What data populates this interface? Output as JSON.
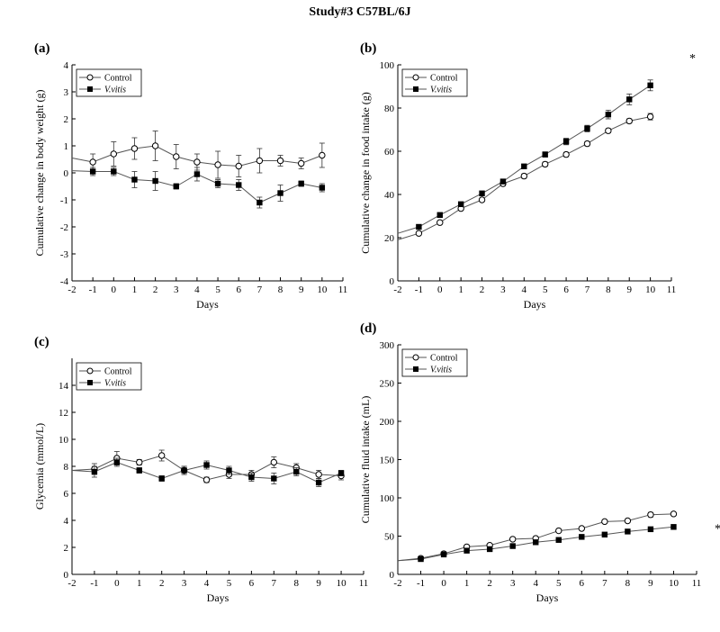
{
  "title": "Study#3  C57BL/6J",
  "chart_data": [
    {
      "panel": "(a)",
      "type": "line",
      "xlabel": "Days",
      "ylabel": "Cumulative change in body weight (g)",
      "xlim": [
        -2,
        11
      ],
      "ylim": [
        -4,
        4
      ],
      "xticks": [
        -2,
        -1,
        0,
        1,
        2,
        3,
        4,
        5,
        6,
        7,
        8,
        9,
        10,
        11
      ],
      "yticks": [
        -4,
        -3,
        -2,
        -1,
        0,
        1,
        2,
        3,
        4
      ],
      "legend": "top-left",
      "annotation": "",
      "series": [
        {
          "name": "Control",
          "marker": "open-circle",
          "start": [
            -2,
            0.55
          ],
          "x": [
            -1,
            0,
            1,
            2,
            3,
            4,
            5,
            6,
            7,
            8,
            9,
            10
          ],
          "y": [
            0.4,
            0.7,
            0.9,
            1.0,
            0.6,
            0.4,
            0.3,
            0.25,
            0.45,
            0.45,
            0.35,
            0.65
          ],
          "err": [
            0.3,
            0.45,
            0.4,
            0.55,
            0.45,
            0.3,
            0.5,
            0.4,
            0.45,
            0.2,
            0.2,
            0.45
          ]
        },
        {
          "name": "V.vitis",
          "marker": "filled-square",
          "start": [
            -2,
            0.08
          ],
          "x": [
            -1,
            0,
            1,
            2,
            3,
            4,
            5,
            6,
            7,
            8,
            9,
            10
          ],
          "y": [
            0.05,
            0.05,
            -0.25,
            -0.3,
            -0.5,
            -0.05,
            -0.4,
            -0.45,
            -1.1,
            -0.75,
            -0.4,
            -0.55
          ],
          "err": [
            0.15,
            0.15,
            0.3,
            0.35,
            0.1,
            0.25,
            0.15,
            0.2,
            0.2,
            0.3,
            0.1,
            0.15
          ]
        }
      ]
    },
    {
      "panel": "(b)",
      "type": "line",
      "xlabel": "Days",
      "ylabel": "Cumulative change in food intake (g)",
      "xlim": [
        -2,
        11
      ],
      "ylim": [
        0,
        100
      ],
      "xticks": [
        -2,
        -1,
        0,
        1,
        2,
        3,
        4,
        5,
        6,
        7,
        8,
        9,
        10,
        11
      ],
      "yticks": [
        0,
        20,
        40,
        60,
        80,
        100
      ],
      "legend": "top-left",
      "annotation": "*",
      "series": [
        {
          "name": "Control",
          "marker": "open-circle",
          "start": [
            -2,
            19
          ],
          "x": [
            -1,
            0,
            1,
            2,
            3,
            4,
            5,
            6,
            7,
            8,
            9,
            10
          ],
          "y": [
            22,
            27,
            33.5,
            37.5,
            45,
            48.5,
            54,
            58.5,
            63.5,
            69.5,
            74,
            76
          ],
          "err": [
            0.8,
            0.8,
            0.8,
            0.8,
            1,
            1,
            1,
            1,
            1,
            1,
            1,
            1.5
          ]
        },
        {
          "name": "V.vitis",
          "marker": "filled-square",
          "start": [
            -2,
            22
          ],
          "x": [
            -1,
            0,
            1,
            2,
            3,
            4,
            5,
            6,
            7,
            8,
            9,
            10
          ],
          "y": [
            25,
            30.5,
            35.5,
            40.5,
            46,
            53,
            58.5,
            64.5,
            70.5,
            77,
            84,
            90.5
          ],
          "err": [
            0.8,
            0.8,
            1,
            1,
            1,
            1,
            1.2,
            1.5,
            1.5,
            2,
            2.5,
            2.5
          ]
        }
      ]
    },
    {
      "panel": "(c)",
      "type": "line",
      "xlabel": "Days",
      "ylabel": "Glycemia (mmol/L)",
      "xlim": [
        -2,
        11
      ],
      "ylim": [
        0,
        16
      ],
      "xticks": [
        -2,
        -1,
        0,
        1,
        2,
        3,
        4,
        5,
        6,
        7,
        8,
        9,
        10,
        11
      ],
      "yticks": [
        0,
        2,
        4,
        6,
        8,
        10,
        12,
        14
      ],
      "legend": "top-left",
      "annotation": "",
      "series": [
        {
          "name": "Control",
          "marker": "open-circle",
          "start": [
            -2,
            7.7
          ],
          "x": [
            -1,
            0,
            1,
            2,
            3,
            4,
            5,
            6,
            7,
            8,
            9,
            10
          ],
          "y": [
            7.8,
            8.6,
            8.3,
            8.8,
            7.7,
            7.0,
            7.4,
            7.4,
            8.3,
            7.9,
            7.4,
            7.3
          ],
          "err": [
            0.4,
            0.5,
            0.2,
            0.4,
            0.3,
            0.2,
            0.3,
            0.3,
            0.4,
            0.3,
            0.3,
            0.3
          ]
        },
        {
          "name": "V.vitis",
          "marker": "filled-square",
          "start": [
            -2,
            7.7
          ],
          "x": [
            -1,
            0,
            1,
            2,
            3,
            4,
            5,
            6,
            7,
            8,
            9,
            10
          ],
          "y": [
            7.6,
            8.3,
            7.7,
            7.1,
            7.7,
            8.1,
            7.7,
            7.2,
            7.1,
            7.6,
            6.8,
            7.5
          ],
          "err": [
            0.4,
            0.3,
            0.2,
            0.2,
            0.3,
            0.3,
            0.3,
            0.3,
            0.4,
            0.3,
            0.3,
            0.2
          ]
        }
      ]
    },
    {
      "panel": "(d)",
      "type": "line",
      "xlabel": "Days",
      "ylabel": "Cumulative fluid intake (mL)",
      "xlim": [
        -2,
        11
      ],
      "ylim": [
        0,
        300
      ],
      "xticks": [
        -2,
        -1,
        0,
        1,
        2,
        3,
        4,
        5,
        6,
        7,
        8,
        9,
        10,
        11
      ],
      "yticks": [
        0,
        50,
        100,
        150,
        200,
        250,
        300
      ],
      "legend": "top-left",
      "annotation": "*",
      "series": [
        {
          "name": "Control",
          "marker": "open-circle",
          "start": [
            -2,
            18
          ],
          "x": [
            -1,
            0,
            1,
            2,
            3,
            4,
            5,
            6,
            7,
            8,
            9,
            10
          ],
          "y": [
            21,
            27,
            36,
            38,
            46,
            47,
            57,
            60,
            69,
            70,
            78,
            79
          ],
          "err": [
            2,
            2,
            2,
            2,
            2,
            2,
            2,
            2,
            2,
            2,
            3,
            2
          ]
        },
        {
          "name": "V.vitis",
          "marker": "filled-square",
          "start": [
            -2,
            18
          ],
          "x": [
            -1,
            0,
            1,
            2,
            3,
            4,
            5,
            6,
            7,
            8,
            9,
            10
          ],
          "y": [
            20,
            26,
            31,
            33,
            37,
            42,
            45,
            49,
            52,
            56,
            59,
            62
          ],
          "err": [
            1,
            1,
            1,
            1,
            1,
            1,
            1,
            1,
            1,
            1,
            1,
            1
          ]
        }
      ]
    }
  ]
}
